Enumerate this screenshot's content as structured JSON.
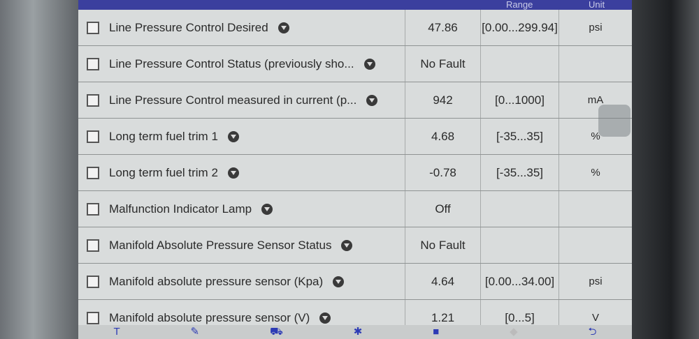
{
  "header": {
    "range": "Range",
    "unit": "Unit"
  },
  "rows": [
    {
      "name": "Line Pressure Control Desired",
      "value": "47.86",
      "range": "[0.00...299.94]",
      "unit": "psi"
    },
    {
      "name": "Line Pressure Control Status (previously sho...",
      "value": "No Fault",
      "range": "",
      "unit": ""
    },
    {
      "name": "Line Pressure Control measured in current (p...",
      "value": "942",
      "range": "[0...1000]",
      "unit": "mA"
    },
    {
      "name": "Long term fuel trim 1",
      "value": "4.68",
      "range": "[-35...35]",
      "unit": "%"
    },
    {
      "name": "Long term fuel trim 2",
      "value": "-0.78",
      "range": "[-35...35]",
      "unit": "%"
    },
    {
      "name": "Malfunction Indicator Lamp",
      "value": "Off",
      "range": "",
      "unit": ""
    },
    {
      "name": "Manifold Absolute Pressure Sensor Status",
      "value": "No Fault",
      "range": "",
      "unit": ""
    },
    {
      "name": "Manifold absolute pressure sensor (Kpa)",
      "value": "4.64",
      "range": "[0.00...34.00]",
      "unit": "psi"
    },
    {
      "name": "Manifold absolute pressure sensor (V)",
      "value": "1.21",
      "range": "[0...5]",
      "unit": "V"
    }
  ],
  "toolbar": {
    "icons": [
      "text-icon",
      "wrench-icon",
      "basket-icon",
      "engine-icon",
      "video-icon",
      "diamond-icon",
      "back-arrow-icon"
    ]
  },
  "colors": {
    "header": "#3b3f9e",
    "toolbar_icons": "#2d3bb5"
  }
}
